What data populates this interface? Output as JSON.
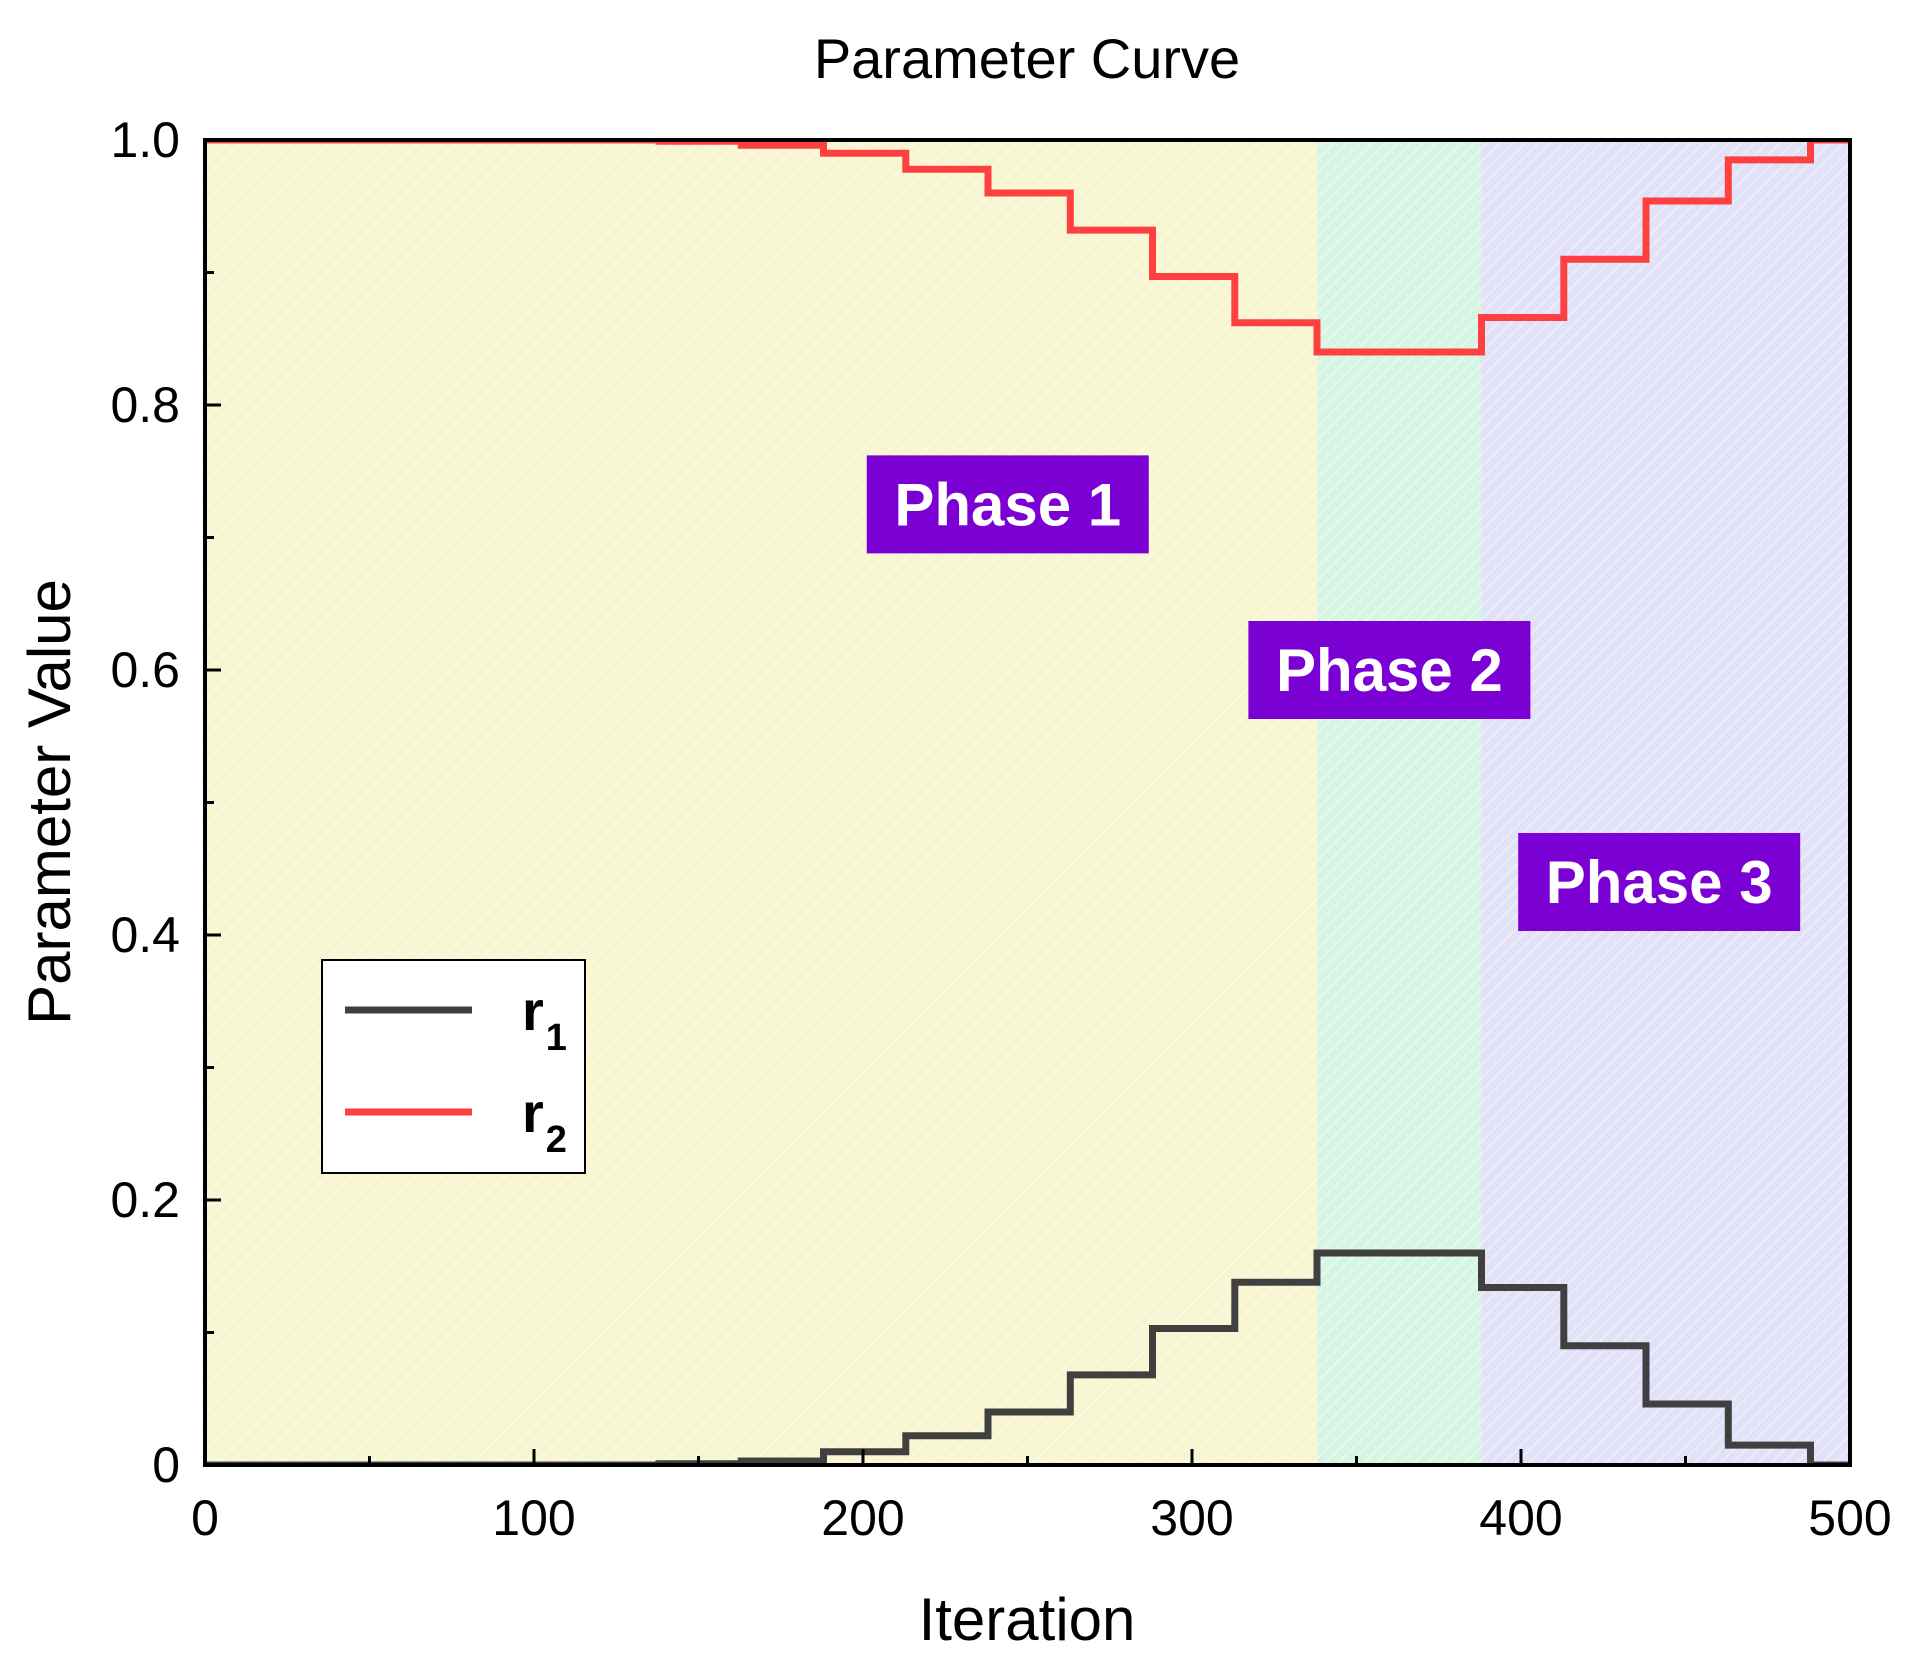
{
  "chart_data": {
    "type": "line",
    "title": "Parameter Curve",
    "xlabel": "Iteration",
    "ylabel": "Parameter Value",
    "xlim": [
      0,
      500
    ],
    "ylim": [
      0,
      1.0
    ],
    "xticks": [
      "0",
      "100",
      "200",
      "300",
      "400",
      "500"
    ],
    "xtick_values": [
      0,
      100,
      200,
      300,
      400,
      500
    ],
    "yticks": [
      "0",
      "0.2",
      "0.4",
      "0.6",
      "0.8",
      "1.0"
    ],
    "ytick_values": [
      0,
      0.2,
      0.4,
      0.6,
      0.8,
      1.0
    ],
    "grid": false,
    "legend_position": "lower-left",
    "phases": [
      {
        "label": "Phase 1",
        "x_start": 0,
        "x_end": 338,
        "color": "#f0ec9a",
        "label_x": 244,
        "label_y": 0.725
      },
      {
        "label": "Phase 2",
        "x_start": 338,
        "x_end": 388,
        "color": "#a4ecc4",
        "label_x": 360,
        "label_y": 0.6
      },
      {
        "label": "Phase 3",
        "x_start": 388,
        "x_end": 500,
        "color": "#bcbcf0",
        "label_x": 442,
        "label_y": 0.44
      }
    ],
    "phase_label_bg": "#7a00d4",
    "series": [
      {
        "name": "r1",
        "base": "r",
        "sub": "1",
        "color": "#404040",
        "x": [
          0,
          138,
          138,
          163,
          163,
          188,
          188,
          213,
          213,
          238,
          238,
          263,
          263,
          288,
          288,
          313,
          313,
          338,
          338,
          388,
          388,
          413,
          413,
          438,
          438,
          463,
          463,
          488,
          488,
          500
        ],
        "y": [
          0,
          0,
          0.001,
          0.001,
          0.003,
          0.003,
          0.01,
          0.01,
          0.022,
          0.022,
          0.04,
          0.04,
          0.068,
          0.068,
          0.103,
          0.103,
          0.138,
          0.138,
          0.16,
          0.16,
          0.134,
          0.134,
          0.09,
          0.09,
          0.046,
          0.046,
          0.015,
          0.015,
          0,
          0
        ]
      },
      {
        "name": "r2",
        "base": "r",
        "sub": "2",
        "color": "#ff4040",
        "x": [
          0,
          138,
          138,
          163,
          163,
          188,
          188,
          213,
          213,
          238,
          238,
          263,
          263,
          288,
          288,
          313,
          313,
          338,
          338,
          388,
          388,
          413,
          413,
          438,
          438,
          463,
          463,
          488,
          488,
          500
        ],
        "y": [
          1.0,
          1.0,
          0.999,
          0.999,
          0.996,
          0.996,
          0.99,
          0.99,
          0.978,
          0.978,
          0.96,
          0.96,
          0.932,
          0.932,
          0.897,
          0.897,
          0.862,
          0.862,
          0.84,
          0.84,
          0.866,
          0.866,
          0.91,
          0.91,
          0.954,
          0.954,
          0.985,
          0.985,
          1.0,
          1.0
        ]
      }
    ]
  }
}
